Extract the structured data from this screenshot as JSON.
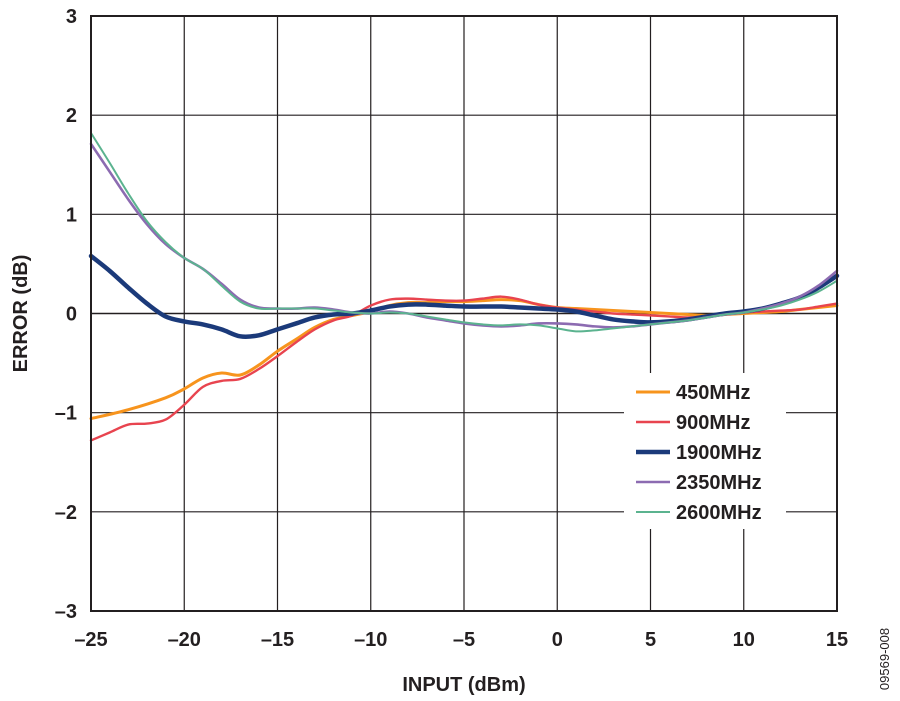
{
  "chart_data": {
    "type": "line",
    "xlabel": "INPUT (dBm)",
    "ylabel": "ERROR (dB)",
    "xlim": [
      -25,
      15
    ],
    "ylim": [
      -3,
      3
    ],
    "xticks": [
      -25,
      -20,
      -15,
      -10,
      -5,
      0,
      5,
      10,
      15
    ],
    "yticks": [
      -3,
      -2,
      -1,
      0,
      1,
      2,
      3
    ],
    "xtick_labels": [
      "–25",
      "–20",
      "–15",
      "–10",
      "–5",
      "0",
      "5",
      "10",
      "15"
    ],
    "ytick_labels": [
      "–3",
      "–2",
      "–1",
      "0",
      "1",
      "2",
      "3"
    ],
    "grid": true,
    "legend_position": "right",
    "figure_id": "09569-008",
    "series": [
      {
        "name": "450MHz",
        "color": "#f7941d",
        "x": [
          -25,
          -23,
          -21,
          -20,
          -19,
          -18,
          -17,
          -16,
          -15,
          -14,
          -13,
          -12,
          -11,
          -10,
          -9,
          -8,
          -7,
          -6,
          -5,
          -4,
          -3,
          -2,
          -1,
          0,
          1,
          2,
          3,
          4,
          5,
          6,
          7,
          8,
          9,
          10,
          11,
          12,
          13,
          14,
          15
        ],
        "y": [
          -1.06,
          -0.97,
          -0.85,
          -0.76,
          -0.65,
          -0.6,
          -0.62,
          -0.52,
          -0.38,
          -0.26,
          -0.14,
          -0.06,
          -0.02,
          0.02,
          0.08,
          0.11,
          0.11,
          0.12,
          0.12,
          0.13,
          0.14,
          0.13,
          0.09,
          0.06,
          0.05,
          0.04,
          0.03,
          0.02,
          0.01,
          0.0,
          -0.01,
          -0.02,
          -0.01,
          0.0,
          0.01,
          0.02,
          0.04,
          0.06,
          0.08
        ]
      },
      {
        "name": "900MHz",
        "color": "#e8444f",
        "x": [
          -25,
          -24,
          -23,
          -22,
          -21,
          -20,
          -19,
          -18,
          -17,
          -16,
          -15,
          -14,
          -13,
          -12,
          -11,
          -10,
          -9,
          -8,
          -7,
          -6,
          -5,
          -4,
          -3,
          -2,
          -1,
          0,
          1,
          2,
          3,
          4,
          5,
          6,
          7,
          8,
          9,
          10,
          11,
          12,
          13,
          14,
          15
        ],
        "y": [
          -1.28,
          -1.2,
          -1.12,
          -1.11,
          -1.07,
          -0.92,
          -0.74,
          -0.68,
          -0.66,
          -0.56,
          -0.43,
          -0.29,
          -0.16,
          -0.07,
          -0.02,
          0.08,
          0.14,
          0.15,
          0.14,
          0.13,
          0.13,
          0.15,
          0.17,
          0.14,
          0.09,
          0.06,
          0.04,
          0.02,
          0.0,
          -0.01,
          -0.02,
          -0.03,
          -0.04,
          -0.03,
          -0.01,
          0.01,
          0.02,
          0.03,
          0.04,
          0.07,
          0.1
        ]
      },
      {
        "name": "1900MHz",
        "color": "#1b3a7a",
        "x": [
          -25,
          -24,
          -23,
          -22,
          -21,
          -20,
          -19,
          -18,
          -17,
          -16,
          -15,
          -14,
          -13,
          -12,
          -11,
          -10,
          -9,
          -8,
          -7,
          -6,
          -5,
          -4,
          -3,
          -2,
          -1,
          0,
          1,
          2,
          3,
          4,
          5,
          6,
          7,
          8,
          9,
          10,
          11,
          12,
          13,
          14,
          15
        ],
        "y": [
          0.58,
          0.43,
          0.26,
          0.1,
          -0.03,
          -0.08,
          -0.11,
          -0.16,
          -0.23,
          -0.22,
          -0.16,
          -0.1,
          -0.04,
          -0.01,
          0.0,
          0.03,
          0.07,
          0.09,
          0.09,
          0.08,
          0.07,
          0.07,
          0.07,
          0.06,
          0.05,
          0.04,
          0.02,
          -0.02,
          -0.06,
          -0.08,
          -0.09,
          -0.08,
          -0.06,
          -0.03,
          0.0,
          0.02,
          0.05,
          0.1,
          0.16,
          0.26,
          0.38
        ]
      },
      {
        "name": "2350MHz",
        "color": "#8c6bb1",
        "x": [
          -25,
          -24,
          -23,
          -22,
          -21,
          -20,
          -19,
          -18,
          -17,
          -16,
          -15,
          -14,
          -13,
          -12,
          -11,
          -10,
          -9,
          -8,
          -7,
          -6,
          -5,
          -4,
          -3,
          -2,
          -1,
          0,
          1,
          2,
          3,
          4,
          5,
          6,
          7,
          8,
          9,
          10,
          11,
          12,
          13,
          14,
          15
        ],
        "y": [
          1.71,
          1.43,
          1.15,
          0.9,
          0.7,
          0.56,
          0.45,
          0.3,
          0.14,
          0.06,
          0.05,
          0.05,
          0.06,
          0.04,
          0.01,
          0.0,
          0.02,
          0.0,
          -0.04,
          -0.07,
          -0.1,
          -0.12,
          -0.13,
          -0.12,
          -0.1,
          -0.1,
          -0.11,
          -0.13,
          -0.14,
          -0.13,
          -0.11,
          -0.09,
          -0.07,
          -0.04,
          -0.01,
          0.01,
          0.05,
          0.1,
          0.17,
          0.28,
          0.43
        ]
      },
      {
        "name": "2600MHz",
        "color": "#5bb38f",
        "x": [
          -25,
          -24,
          -23,
          -22,
          -21,
          -20,
          -19,
          -18,
          -17,
          -16,
          -15,
          -14,
          -13,
          -12,
          -11,
          -10,
          -9,
          -8,
          -7,
          -6,
          -5,
          -4,
          -3,
          -2,
          -1,
          0,
          1,
          2,
          3,
          4,
          5,
          6,
          7,
          8,
          9,
          10,
          11,
          12,
          13,
          14,
          15
        ],
        "y": [
          1.82,
          1.52,
          1.21,
          0.93,
          0.72,
          0.56,
          0.45,
          0.28,
          0.12,
          0.05,
          0.05,
          0.05,
          0.05,
          0.03,
          0.01,
          0.0,
          0.01,
          0.0,
          -0.03,
          -0.06,
          -0.09,
          -0.11,
          -0.12,
          -0.11,
          -0.12,
          -0.15,
          -0.18,
          -0.17,
          -0.15,
          -0.13,
          -0.11,
          -0.09,
          -0.07,
          -0.04,
          -0.01,
          0.01,
          0.04,
          0.08,
          0.14,
          0.22,
          0.33
        ]
      }
    ]
  }
}
